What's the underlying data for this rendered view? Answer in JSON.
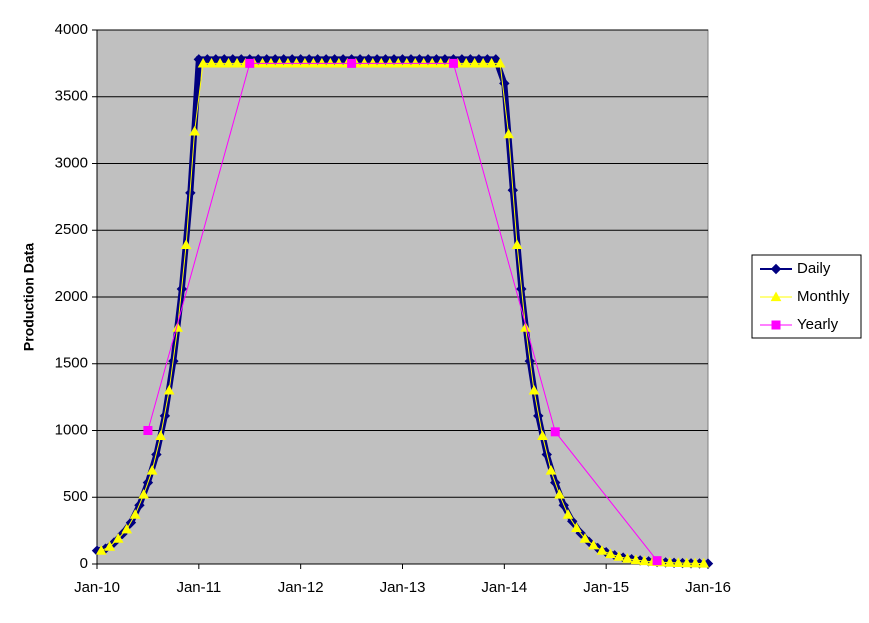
{
  "chart_data": {
    "type": "line",
    "ylabel": "Production Data",
    "xlim": [
      0,
      72
    ],
    "xticks": [
      {
        "value": 0,
        "label": "Jan-10"
      },
      {
        "value": 12,
        "label": "Jan-11"
      },
      {
        "value": 24,
        "label": "Jan-12"
      },
      {
        "value": 36,
        "label": "Jan-13"
      },
      {
        "value": 48,
        "label": "Jan-14"
      },
      {
        "value": 60,
        "label": "Jan-15"
      },
      {
        "value": 72,
        "label": "Jan-16"
      }
    ],
    "ylim": [
      0,
      4000
    ],
    "yticks": [
      0,
      500,
      1000,
      1500,
      2000,
      2500,
      3000,
      3500,
      4000
    ],
    "grid": true,
    "legend": "right",
    "series": [
      {
        "name": "Daily",
        "color": "#000080",
        "marker": "diamond",
        "x": [
          0,
          1,
          2,
          3,
          4,
          5,
          6,
          7,
          8,
          9,
          10,
          11,
          12,
          13,
          14,
          15,
          16,
          17,
          18,
          19,
          20,
          21,
          22,
          23,
          24,
          25,
          26,
          27,
          28,
          29,
          30,
          31,
          32,
          33,
          34,
          35,
          36,
          37,
          38,
          39,
          40,
          41,
          42,
          43,
          44,
          45,
          46,
          47,
          48,
          49,
          50,
          51,
          52,
          53,
          54,
          55,
          56,
          57,
          58,
          59,
          60,
          61,
          62,
          63,
          64,
          65,
          66,
          67,
          68,
          69,
          70,
          71,
          72
        ],
        "values": [
          100,
          115,
          160,
          225,
          310,
          440,
          610,
          820,
          1110,
          1520,
          2060,
          2780,
          3780,
          3780,
          3780,
          3780,
          3780,
          3780,
          3780,
          3780,
          3780,
          3780,
          3780,
          3780,
          3780,
          3780,
          3780,
          3780,
          3780,
          3780,
          3780,
          3780,
          3780,
          3780,
          3780,
          3780,
          3780,
          3780,
          3780,
          3780,
          3780,
          3780,
          3780,
          3780,
          3780,
          3780,
          3780,
          3780,
          3600,
          2800,
          2060,
          1520,
          1110,
          820,
          610,
          440,
          320,
          230,
          165,
          120,
          88,
          65,
          48,
          36,
          27,
          20,
          15,
          12,
          9,
          7,
          5,
          4,
          3
        ]
      },
      {
        "name": "Monthly",
        "color": "#ffff00",
        "marker": "triangle",
        "x": [
          0.5,
          1.5,
          2.5,
          3.5,
          4.5,
          5.5,
          6.5,
          7.5,
          8.5,
          9.5,
          10.5,
          11.5,
          12.5,
          13.5,
          14.5,
          15.5,
          16.5,
          17.5,
          18.5,
          19.5,
          20.5,
          21.5,
          22.5,
          23.5,
          24.5,
          25.5,
          26.5,
          27.5,
          28.5,
          29.5,
          30.5,
          31.5,
          32.5,
          33.5,
          34.5,
          35.5,
          36.5,
          37.5,
          38.5,
          39.5,
          40.5,
          41.5,
          42.5,
          43.5,
          44.5,
          45.5,
          46.5,
          47.5,
          48.5,
          49.5,
          50.5,
          51.5,
          52.5,
          53.5,
          54.5,
          55.5,
          56.5,
          57.5,
          58.5,
          59.5,
          60.5,
          61.5,
          62.5,
          63.5,
          64.5,
          65.5,
          66.5,
          67.5,
          68.5,
          69.5,
          70.5,
          71.5
        ],
        "values": [
          100,
          130,
          190,
          260,
          370,
          520,
          700,
          960,
          1300,
          1770,
          2390,
          3240,
          3750,
          3750,
          3750,
          3750,
          3750,
          3750,
          3750,
          3750,
          3750,
          3750,
          3750,
          3750,
          3750,
          3750,
          3750,
          3750,
          3750,
          3750,
          3750,
          3750,
          3750,
          3750,
          3750,
          3750,
          3750,
          3750,
          3750,
          3750,
          3750,
          3750,
          3750,
          3750,
          3750,
          3750,
          3750,
          3750,
          3220,
          2390,
          1770,
          1300,
          960,
          700,
          520,
          370,
          270,
          190,
          140,
          100,
          75,
          55,
          40,
          30,
          22,
          17,
          13,
          10,
          8,
          6,
          5,
          4
        ]
      },
      {
        "name": "Yearly",
        "color": "#ff00ff",
        "marker": "square",
        "x": [
          6,
          18,
          30,
          42,
          54,
          66
        ],
        "values": [
          1000,
          3750,
          3750,
          3750,
          990,
          25
        ]
      }
    ]
  }
}
